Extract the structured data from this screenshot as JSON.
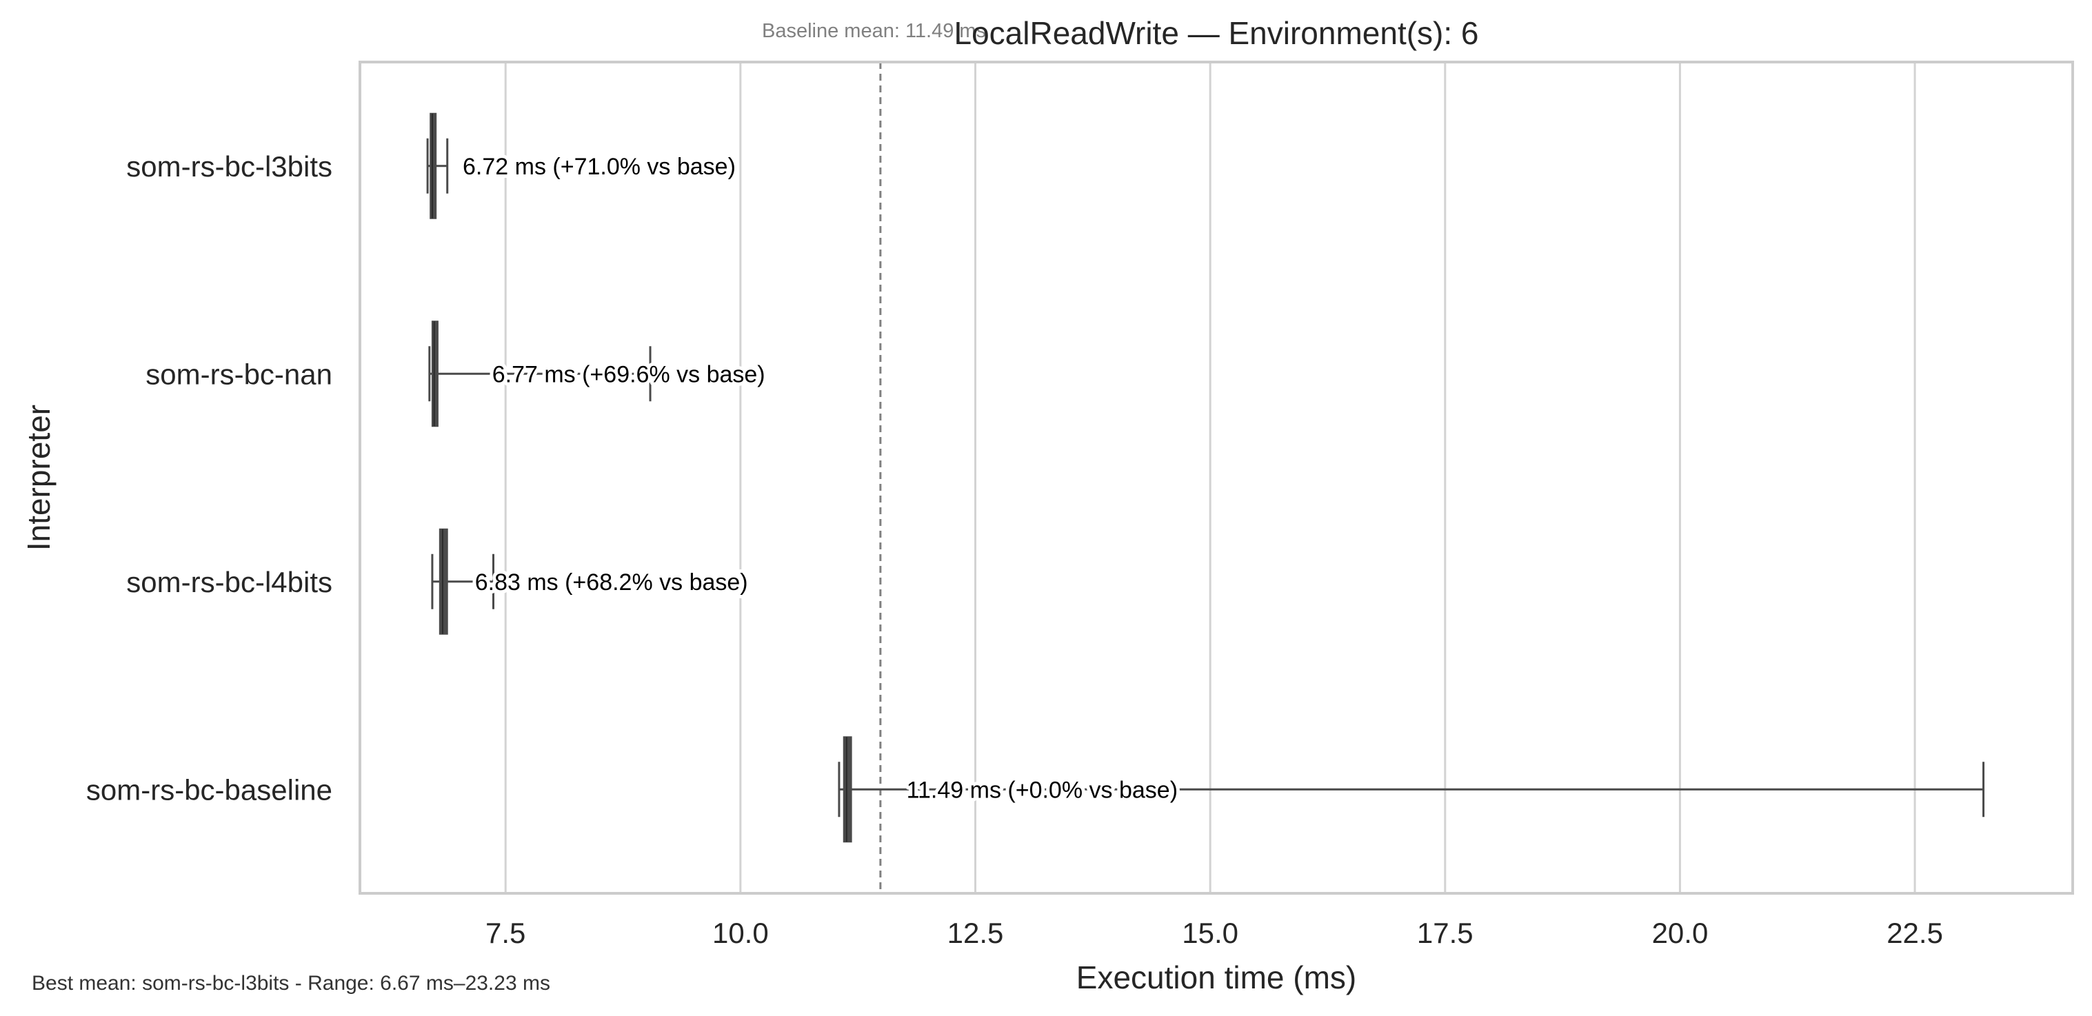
{
  "chart_data": {
    "type": "boxplot",
    "orientation": "horizontal",
    "title": "LocalReadWrite — Environment(s): 6",
    "xlabel": "Execution time (ms)",
    "ylabel": "Interpreter",
    "xlim": [
      5.95,
      24.18
    ],
    "xticks": [
      7.5,
      10.0,
      12.5,
      15.0,
      17.5,
      20.0,
      22.5
    ],
    "xtick_labels": [
      "7.5",
      "10.0",
      "12.5",
      "15.0",
      "17.5",
      "20.0",
      "22.5"
    ],
    "grid": "vertical",
    "categories": [
      "som-rs-bc-l3bits",
      "som-rs-bc-nan",
      "som-rs-bc-l4bits",
      "som-rs-bc-baseline"
    ],
    "boxes": [
      {
        "name": "som-rs-bc-l3bits",
        "whisker_low": 6.67,
        "q1": 6.7,
        "median": 6.72,
        "q3": 6.75,
        "whisker_high": 6.88,
        "mean": 6.72,
        "label": "6.72 ms  (+71.0% vs base)"
      },
      {
        "name": "som-rs-bc-nan",
        "whisker_low": 6.69,
        "q1": 6.72,
        "median": 6.74,
        "q3": 6.77,
        "whisker_high": 9.04,
        "mean": 6.77,
        "label": "6.77 ms  (+69.6% vs base)"
      },
      {
        "name": "som-rs-bc-l4bits",
        "whisker_low": 6.72,
        "q1": 6.8,
        "median": 6.83,
        "q3": 6.88,
        "whisker_high": 7.37,
        "mean": 6.83,
        "label": "6.83 ms  (+68.2% vs base)"
      },
      {
        "name": "som-rs-bc-baseline",
        "whisker_low": 11.05,
        "q1": 11.1,
        "median": 11.13,
        "q3": 11.18,
        "whisker_high": 23.23,
        "mean": 11.49,
        "label": "11.49 ms  (+0.0% vs base)"
      }
    ],
    "baseline_mean": 11.49,
    "baseline_annotation": "Baseline mean: 11.49 ms",
    "footer_note": "Best mean: som-rs-bc-l3bits - Range: 6.67 ms–23.23 ms",
    "colors": {
      "box": "#4a4a4a",
      "grid": "#d3d3d3",
      "axes_border": "#cccccc",
      "baseline_line": "#808080",
      "annotation_text": "#808080",
      "label_text": "#000000",
      "axis_text": "#262626"
    }
  }
}
